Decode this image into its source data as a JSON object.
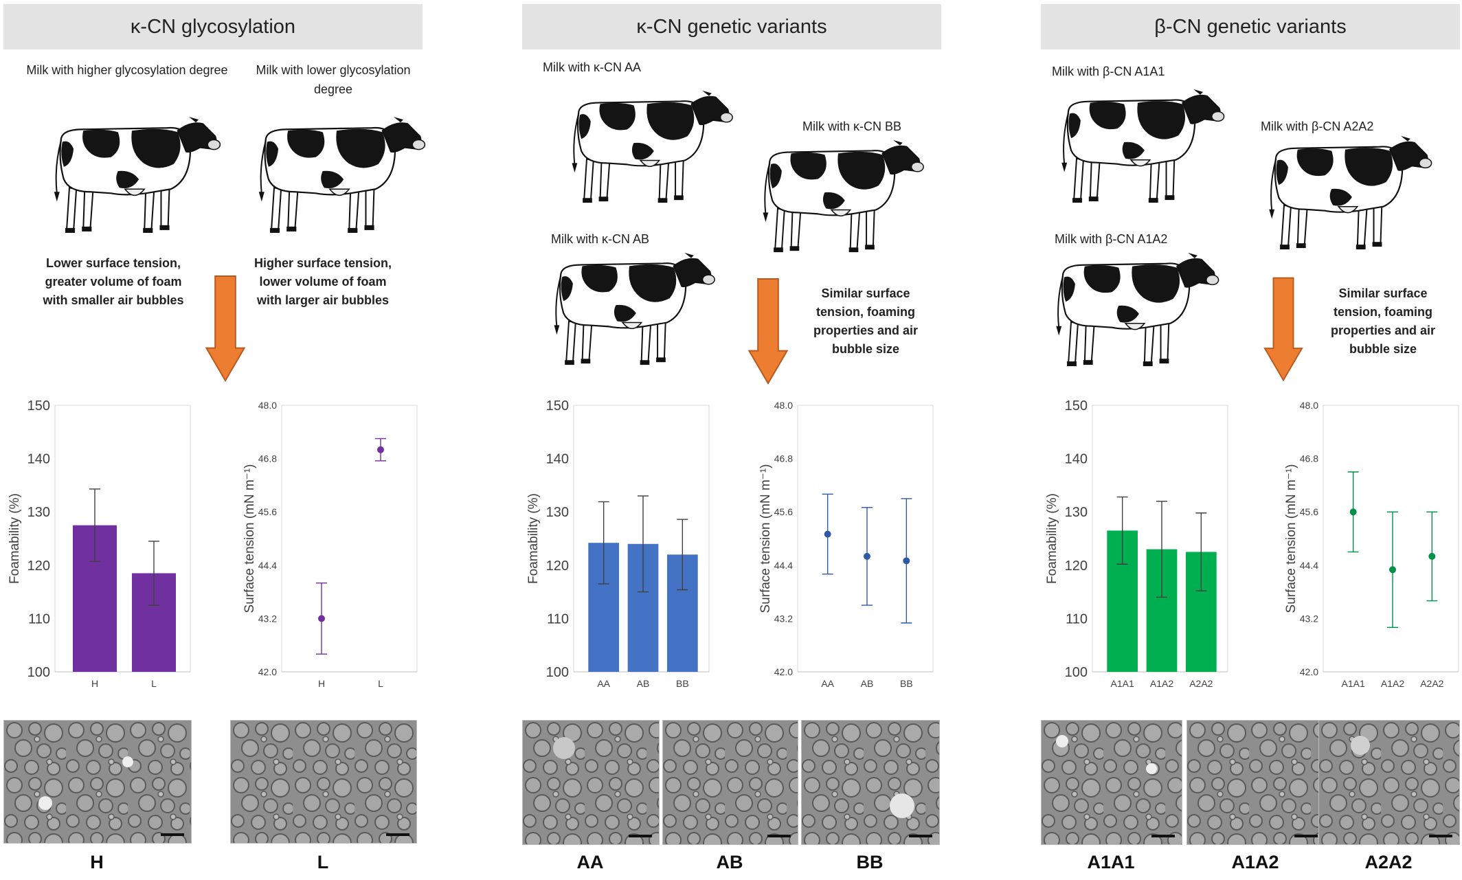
{
  "panels": [
    {
      "title": "κ-CN glycosylation",
      "groups": [
        {
          "label": "Milk with higher glycosylation degree"
        },
        {
          "label": "Milk with lower glycosylation degree"
        }
      ],
      "effects": [
        "Lower surface tension, greater volume of foam with smaller air bubbles",
        "Higher surface tension, lower volume of foam with larger air bubbles"
      ],
      "micrographs": [
        "H",
        "L"
      ]
    },
    {
      "title": "κ-CN genetic variants",
      "groups": [
        {
          "label": "Milk with κ-CN AA"
        },
        {
          "label": "Milk with κ-CN BB"
        },
        {
          "label": "Milk with κ-CN AB"
        }
      ],
      "effects": [
        "Similar surface tension, foaming properties and air bubble size"
      ],
      "micrographs": [
        "AA",
        "AB",
        "BB"
      ]
    },
    {
      "title": "β-CN genetic variants",
      "groups": [
        {
          "label": "Milk with β-CN A1A1"
        },
        {
          "label": "Milk with β-CN A2A2"
        },
        {
          "label": "Milk with β-CN A1A2"
        }
      ],
      "effects": [
        "Similar surface tension, foaming properties and air bubble size"
      ],
      "micrographs": [
        "A1A1",
        "A1A2",
        "A2A2"
      ]
    }
  ],
  "colors": {
    "purple": "#7030a0",
    "blue": "#4472c4",
    "green": "#00b050",
    "arrow": "#ed7d31",
    "arrow_stroke": "#b85a1f"
  },
  "chart_data": [
    {
      "type": "bar",
      "ylabel": "Foamability (%)",
      "ylim": [
        100,
        150
      ],
      "yticks": [
        "100",
        "110",
        "120",
        "130",
        "140",
        "150"
      ],
      "categories": [
        "H",
        "L"
      ],
      "values": [
        127.5,
        118.5
      ],
      "errors": [
        6.8,
        6.0
      ],
      "color": "#7030a0"
    },
    {
      "type": "scatter",
      "ylabel": "Surface tension (mN m⁻¹)",
      "ylim": [
        42.0,
        48.0
      ],
      "yticks": [
        "42.0",
        "43.2",
        "44.4",
        "45.6",
        "46.8",
        "48.0"
      ],
      "categories": [
        "H",
        "L"
      ],
      "values": [
        43.2,
        47.0
      ],
      "errors": [
        0.8,
        0.25
      ],
      "color": "#7030a0"
    },
    {
      "type": "bar",
      "ylabel": "Foamability (%)",
      "ylim": [
        100,
        150
      ],
      "yticks": [
        "100",
        "110",
        "120",
        "130",
        "140",
        "150"
      ],
      "categories": [
        "AA",
        "AB",
        "BB"
      ],
      "values": [
        124.2,
        124.0,
        122.0
      ],
      "errors": [
        7.7,
        9.0,
        6.6
      ],
      "color": "#4472c4"
    },
    {
      "type": "scatter",
      "ylabel": "Surface tension (mN m⁻¹)",
      "ylim": [
        42.0,
        48.0
      ],
      "yticks": [
        "42.0",
        "43.2",
        "44.4",
        "45.6",
        "46.8",
        "48.0"
      ],
      "categories": [
        "AA",
        "AB",
        "BB"
      ],
      "values": [
        45.1,
        44.6,
        44.5
      ],
      "errors": [
        0.9,
        1.1,
        1.4
      ],
      "color": "#2e5aa8"
    },
    {
      "type": "bar",
      "ylabel": "Foamability (%)",
      "ylim": [
        100,
        150
      ],
      "yticks": [
        "100",
        "110",
        "120",
        "130",
        "140",
        "150"
      ],
      "categories": [
        "A1A1",
        "A1A2",
        "A2A2"
      ],
      "values": [
        126.5,
        123.0,
        122.5
      ],
      "errors": [
        6.3,
        9.0,
        7.3
      ],
      "color": "#00b050"
    },
    {
      "type": "scatter",
      "ylabel": "Surface tension (mN m⁻¹)",
      "ylim": [
        42.0,
        48.0
      ],
      "yticks": [
        "42.0",
        "43.2",
        "44.4",
        "45.6",
        "46.8",
        "48.0"
      ],
      "categories": [
        "A1A1",
        "A1A2",
        "A2A2"
      ],
      "values": [
        45.6,
        44.3,
        44.6
      ],
      "errors": [
        0.9,
        1.3,
        1.0
      ],
      "color": "#00904a"
    }
  ]
}
